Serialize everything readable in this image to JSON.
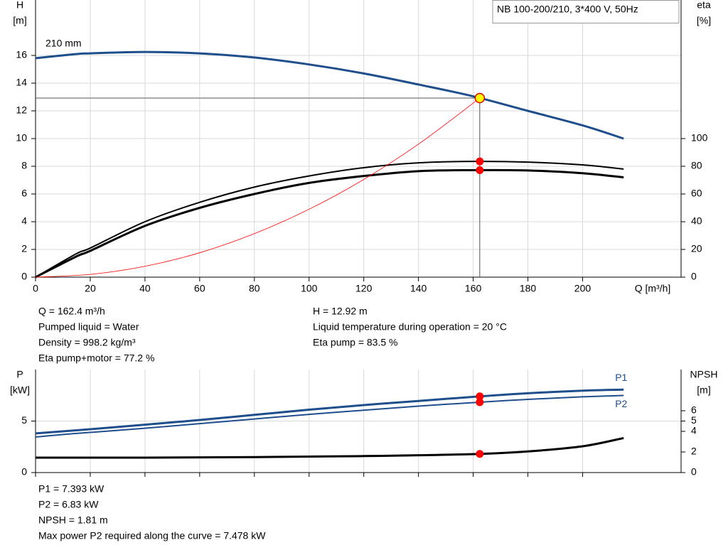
{
  "chart_data": [
    {
      "type": "line",
      "title": "NB 100-200/210, 3*400 V, 50Hz",
      "curve_label": "210 mm",
      "x_label": "Q [m³/h]",
      "y_label": "H",
      "y_unit": "[m]",
      "y2_label": "eta",
      "y2_unit": "[%]",
      "xlim": [
        0,
        236
      ],
      "ylim": [
        0,
        20
      ],
      "y2lim": [
        0,
        200
      ],
      "xticks": [
        0,
        20,
        40,
        60,
        80,
        100,
        120,
        140,
        160,
        180,
        200
      ],
      "yticks": [
        0,
        2,
        4,
        6,
        8,
        10,
        12,
        14,
        16
      ],
      "y2ticks": [
        0,
        20,
        40,
        60,
        80,
        100
      ],
      "grid": true,
      "crosshair": true,
      "series": [
        {
          "color": "#1f4e8c",
          "width": 3,
          "x": [
            0,
            15,
            20,
            40,
            60,
            80,
            100,
            120,
            140,
            160,
            180,
            200,
            215
          ],
          "values": [
            15.8,
            16.1,
            16.15,
            16.25,
            16.15,
            15.85,
            15.35,
            14.7,
            13.9,
            13.05,
            12.0,
            10.95,
            10.0
          ]
        },
        {
          "color": "#000000",
          "width": 2,
          "axis": "y2",
          "x": [
            0,
            15,
            20,
            40,
            60,
            80,
            100,
            120,
            140,
            160,
            180,
            200,
            215
          ],
          "values": [
            0,
            17,
            21,
            40,
            54,
            65,
            73,
            79,
            82.5,
            83.5,
            83,
            81,
            78
          ]
        },
        {
          "color": "#000000",
          "width": 3,
          "axis": "y2",
          "x": [
            0,
            15,
            20,
            40,
            60,
            80,
            100,
            120,
            140,
            160,
            180,
            200,
            215
          ],
          "values": [
            0,
            15,
            19,
            37,
            50,
            60,
            68,
            73,
            76.5,
            77.2,
            77,
            75,
            72
          ]
        },
        {
          "color": "#ff0000",
          "width": 0.8,
          "x": [
            0,
            20,
            40,
            60,
            80,
            100,
            120,
            140,
            162.4
          ],
          "values": [
            0,
            0.2,
            0.78,
            1.76,
            3.14,
            4.9,
            7.05,
            9.6,
            12.92
          ]
        }
      ],
      "points": [
        {
          "x": 162.4,
          "y": 12.92,
          "color": "#ffff00"
        },
        {
          "x": 162.4,
          "y": 83.5,
          "axis": "y2",
          "color": "#ff0000"
        },
        {
          "x": 162.4,
          "y": 77.2,
          "axis": "y2",
          "color": "#ff0000"
        }
      ],
      "annotations": [
        "Q = 162.4 m³/h",
        "Pumped liquid = Water",
        "Density = 998.2 kg/m³",
        "Eta pump+motor = 77.2 %",
        "H = 12.92 m",
        "Liquid temperature during operation = 20 °C",
        "Eta pump = 83.5 %"
      ]
    },
    {
      "type": "line",
      "y_label": "P",
      "y_unit": "[kW]",
      "y2_label": "NPSH",
      "y2_unit": "[m]",
      "xlim": [
        0,
        236
      ],
      "ylim": [
        0,
        10
      ],
      "y2lim": [
        0,
        10
      ],
      "xticks": [
        0,
        20,
        40,
        60,
        80,
        100,
        120,
        140,
        160,
        180,
        200
      ],
      "yticks": [
        0,
        5
      ],
      "y2ticks": [
        0,
        2,
        4,
        5,
        6
      ],
      "grid": true,
      "crosshair": false,
      "series": [
        {
          "name": "P1",
          "color": "#1f4e8c",
          "width": 3,
          "x": [
            0,
            15,
            40,
            60,
            80,
            100,
            120,
            140,
            162.4,
            180,
            200,
            215
          ],
          "values": [
            3.8,
            4.1,
            4.65,
            5.1,
            5.6,
            6.1,
            6.55,
            6.95,
            7.393,
            7.7,
            7.95,
            8.05
          ]
        },
        {
          "name": "P2",
          "color": "#1f4e8c",
          "width": 2,
          "x": [
            0,
            15,
            40,
            60,
            80,
            100,
            120,
            140,
            162.4,
            180,
            200,
            215
          ],
          "values": [
            3.45,
            3.8,
            4.3,
            4.75,
            5.2,
            5.65,
            6.05,
            6.45,
            6.83,
            7.1,
            7.35,
            7.48
          ]
        },
        {
          "color": "#000000",
          "width": 3,
          "axis": "y2",
          "x": [
            0,
            15,
            40,
            60,
            80,
            100,
            120,
            140,
            162.4,
            180,
            200,
            215
          ],
          "values": [
            1.45,
            1.45,
            1.45,
            1.47,
            1.5,
            1.55,
            1.6,
            1.68,
            1.81,
            2.05,
            2.55,
            3.35
          ]
        }
      ],
      "points": [
        {
          "x": 162.4,
          "y": 7.393,
          "color": "#ff0000"
        },
        {
          "x": 162.4,
          "y": 6.83,
          "color": "#ff0000"
        },
        {
          "x": 162.4,
          "y": 1.81,
          "axis": "y2",
          "color": "#ff0000"
        }
      ],
      "annotations": [
        "P1 = 7.393 kW",
        "P2 = 6.83 kW",
        "NPSH = 1.81 m",
        "Max power P2 required along the curve = 7.478 kW"
      ]
    }
  ]
}
